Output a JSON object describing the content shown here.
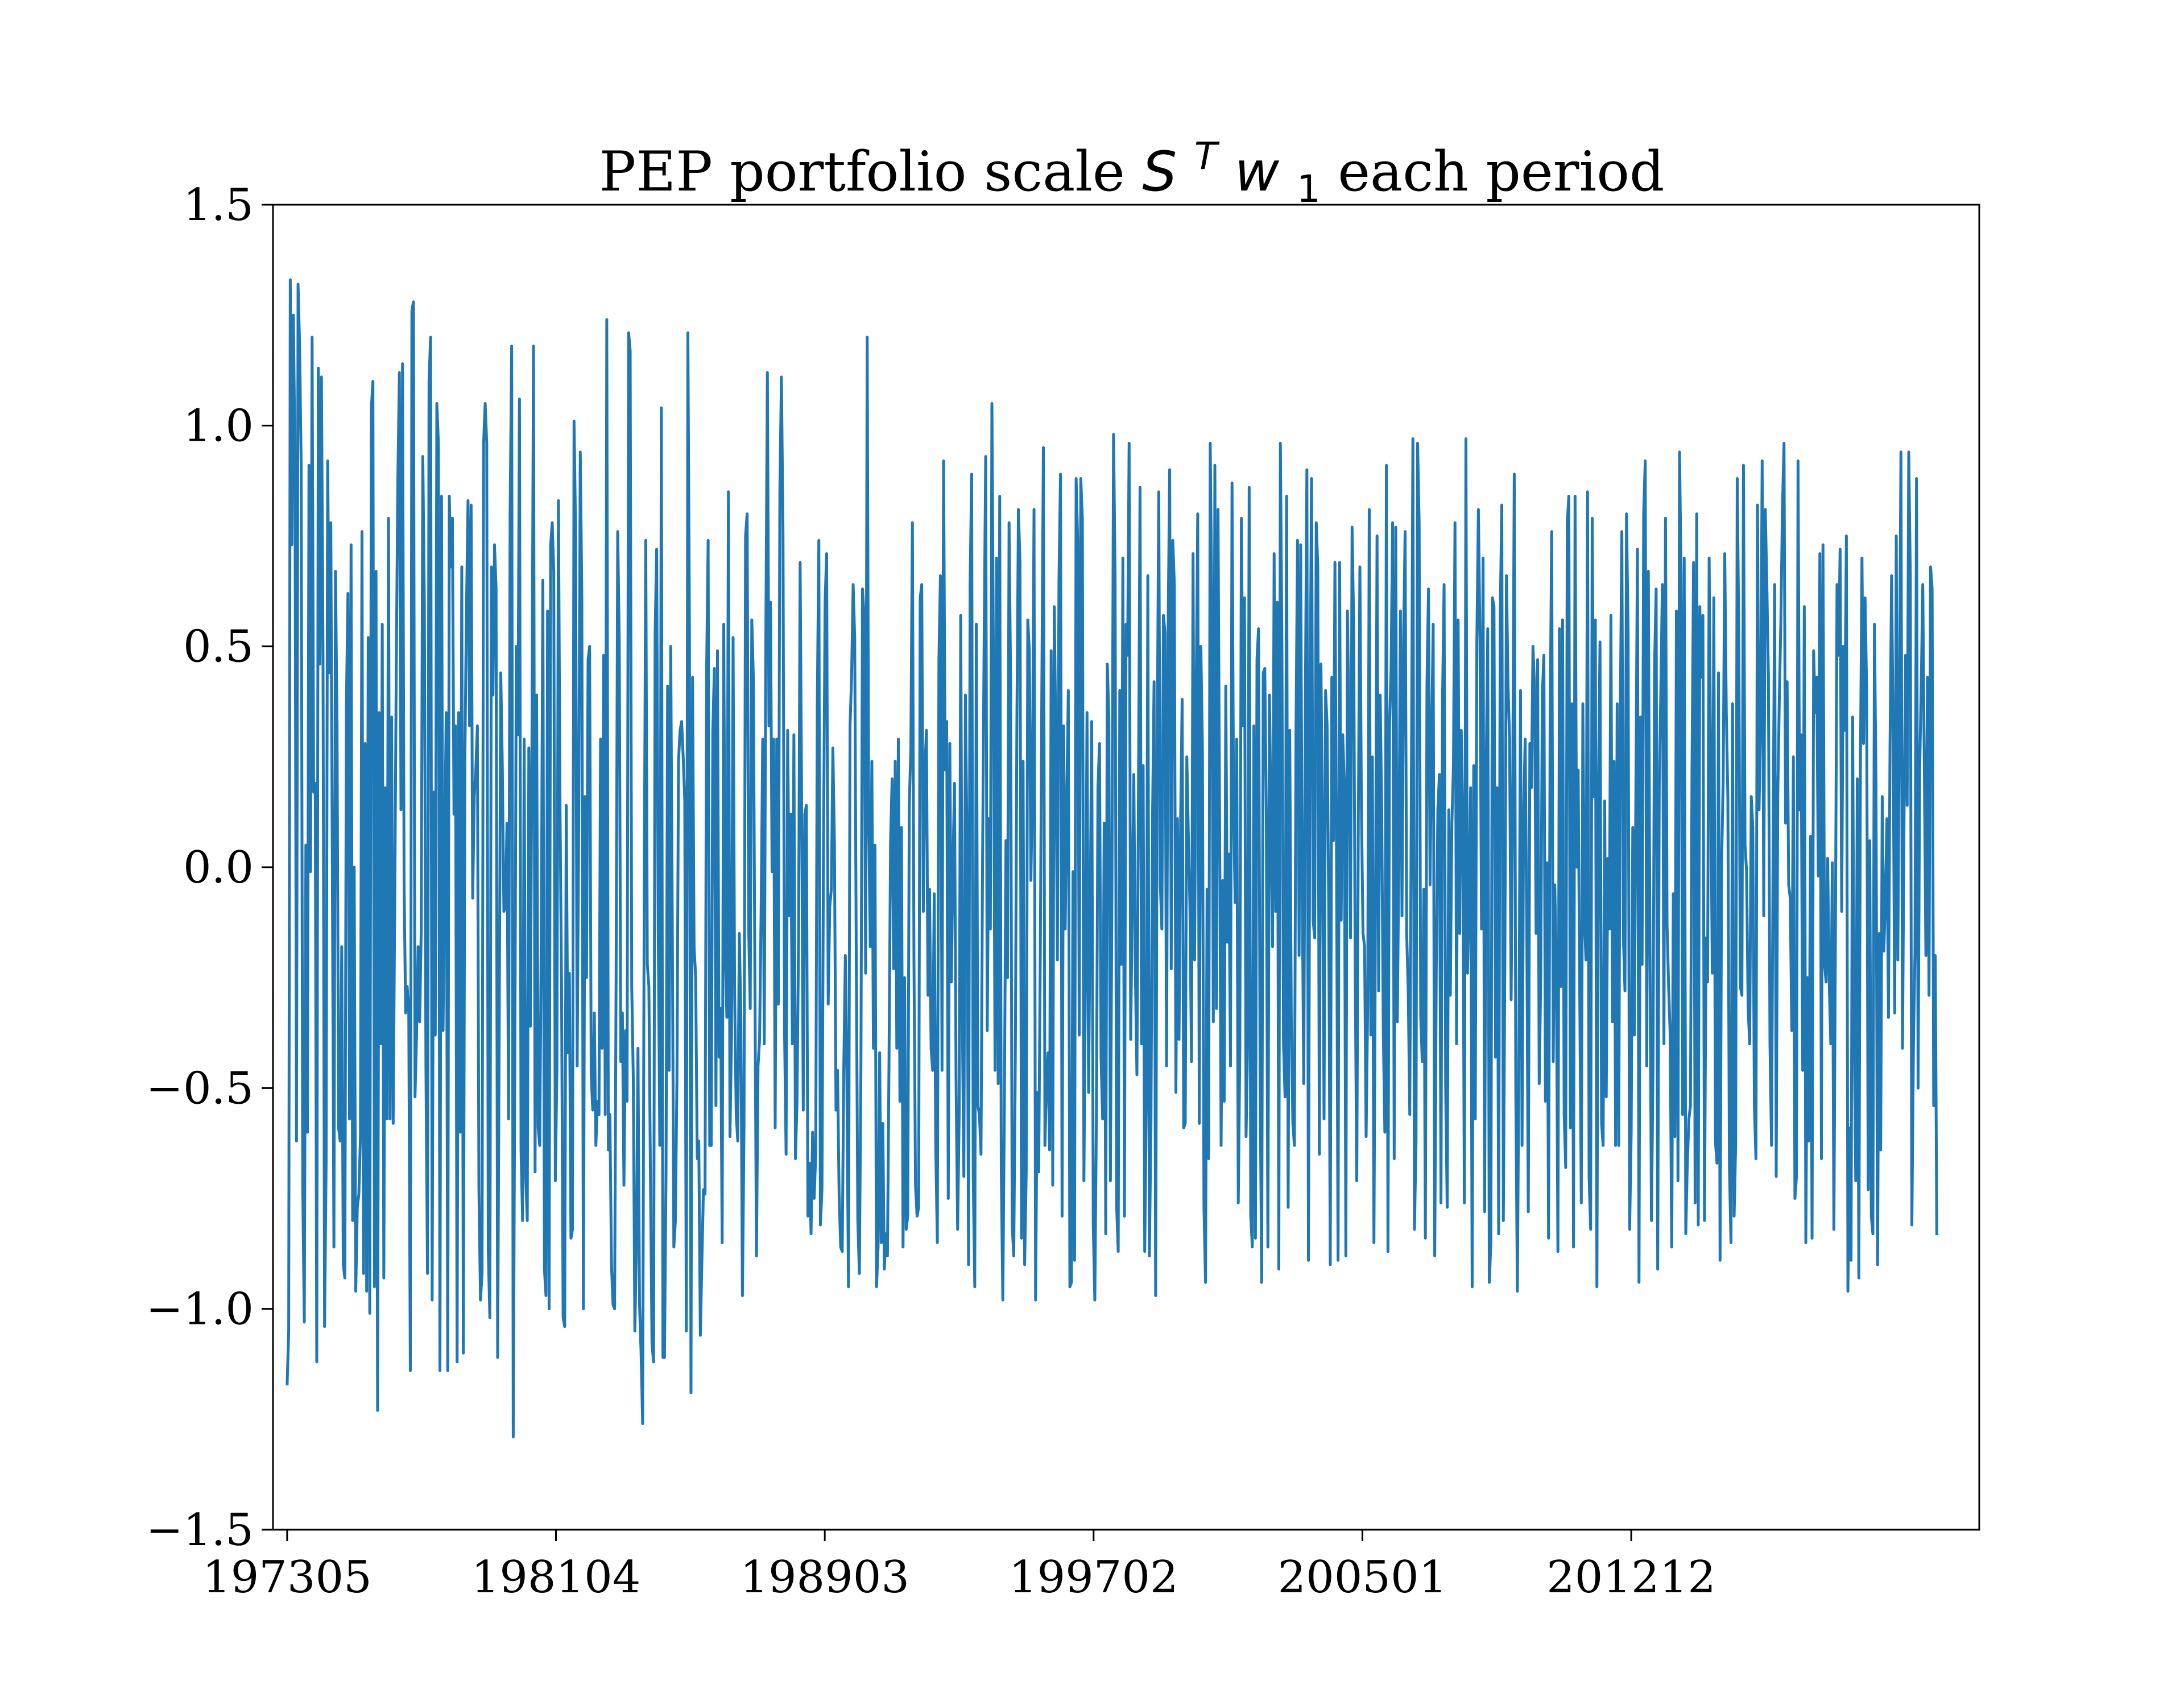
{
  "chart_data": {
    "type": "line",
    "title": {
      "prefix": "PEP portfolio scale ",
      "math_base": "S",
      "math_sup": "T",
      "math_var": "w",
      "math_sub": "1",
      "suffix": " each period"
    },
    "xlabel": "",
    "ylabel": "",
    "xlim": [
      197212,
      202303
    ],
    "ylim": [
      -1.5,
      1.5
    ],
    "x_ticks": [
      "197305",
      "198104",
      "198903",
      "199702",
      "200501",
      "201212"
    ],
    "y_ticks": [
      -1.5,
      -1.0,
      -0.5,
      0.0,
      0.5,
      1.0,
      1.5
    ],
    "y_tick_labels": [
      "−1.5",
      "−1.0",
      "−0.5",
      "0.0",
      "0.5",
      "1.0",
      "1.5"
    ],
    "grid": false,
    "legend": "none",
    "x_start": "197305",
    "x_end": "202112",
    "series": [
      {
        "color": "#1f77b4",
        "values": [
          -1.17,
          -1.05,
          1.33,
          0.73,
          1.25,
          0.93,
          -0.62,
          1.32,
          1.18,
          0.91,
          -0.72,
          -1.03,
          0.05,
          -0.6,
          0.91,
          -0.01,
          1.2,
          0.17,
          0.19,
          -1.12,
          1.13,
          0.46,
          1.11,
          0.48,
          -1.04,
          -0.67,
          0.92,
          0.44,
          0.78,
          -0.02,
          -0.86,
          0.67,
          0.32,
          -0.59,
          -0.62,
          -0.18,
          -0.9,
          -0.93,
          0.37,
          0.62,
          -0.57,
          0.73,
          -0.8,
          0.0,
          -0.96,
          -0.77,
          -0.74,
          -0.61,
          0.76,
          -0.92,
          0.28,
          -0.96,
          0.52,
          -1.01,
          1.04,
          1.1,
          -0.95,
          0.67,
          -1.23,
          0.35,
          -0.4,
          0.55,
          -0.93,
          0.18,
          -0.57,
          0.79,
          -0.57,
          0.34,
          -0.58,
          -0.08,
          0.46,
          0.88,
          1.12,
          0.13,
          1.14,
          -0.04,
          -0.33,
          -0.27,
          -0.33,
          -1.14,
          1.26,
          1.28,
          -0.52,
          -0.38,
          -0.18,
          -0.35,
          -0.14,
          0.93,
          0.6,
          -0.45,
          -0.92,
          1.1,
          1.2,
          -0.98,
          0.17,
          -0.38,
          1.05,
          0.96,
          -1.14,
          0.84,
          -0.37,
          0.02,
          0.35,
          -1.14,
          0.84,
          0.68,
          0.79,
          0.12,
          0.32,
          -1.12,
          0.35,
          -0.6,
          0.68,
          -1.1,
          0.25,
          0.58,
          0.83,
          0.32,
          0.82,
          -0.07,
          0.16,
          0.22,
          0.32,
          -0.73,
          -0.98,
          -0.92,
          0.96,
          1.05,
          0.96,
          -0.87,
          -1.02,
          0.68,
          0.39,
          0.73,
          0.63,
          -1.11,
          -0.37,
          0.44,
          0.23,
          -0.1,
          -0.09,
          0.1,
          -0.57,
          0.8,
          1.18,
          -1.29,
          -0.45,
          0.5,
          0.3,
          1.06,
          -0.64,
          -0.8,
          0.29,
          -0.7,
          -0.8,
          0.27,
          -0.36,
          0.28,
          1.18,
          -0.69,
          0.39,
          -0.59,
          -0.63,
          -0.14,
          0.65,
          -0.91,
          -0.97,
          0.58,
          -1.0,
          0.73,
          0.78,
          0.67,
          -0.71,
          -0.46,
          0.83,
          0.14,
          -0.28,
          -1.02,
          -1.04,
          0.14,
          -0.42,
          -0.24,
          -0.84,
          -0.82,
          1.01,
          0.76,
          -0.45,
          0.1,
          0.94,
          0.61,
          -1.0,
          0.16,
          -0.25,
          0.47,
          0.5,
          -0.47,
          -0.55,
          -0.33,
          -0.63,
          -0.53,
          -0.56,
          0.29,
          -0.41,
          0.48,
          -0.56,
          1.24,
          -0.64,
          -0.56,
          -0.9,
          -0.99,
          -1.0,
          -0.23,
          0.76,
          0.51,
          -0.44,
          -0.33,
          -0.72,
          -0.37,
          -0.53,
          1.21,
          1.17,
          -0.27,
          -0.48,
          -1.05,
          -0.85,
          -0.41,
          -0.99,
          -1.1,
          -1.26,
          -0.07,
          0.74,
          -0.22,
          -0.27,
          -0.7,
          -1.08,
          -1.12,
          0.53,
          0.72,
          -0.14,
          -0.63,
          1.04,
          -1.11,
          -1.11,
          -0.69,
          0.41,
          -0.46,
          0.5,
          -0.12,
          -0.86,
          -0.8,
          -0.48,
          0.24,
          0.31,
          0.33,
          0.25,
          0.15,
          -1.05,
          1.21,
          0.54,
          -1.19,
          0.43,
          -0.18,
          -0.25,
          -0.66,
          -0.62,
          -1.06,
          -0.89,
          -0.73,
          -0.74,
          0.44,
          0.74,
          -0.63,
          -0.63,
          0.31,
          0.45,
          -0.54,
          0.49,
          -0.43,
          -0.32,
          -0.85,
          0.55,
          -0.19,
          -0.34,
          0.85,
          -0.61,
          -0.38,
          0.52,
          -0.29,
          -0.56,
          -0.62,
          -0.15,
          -0.34,
          -0.97,
          -0.59,
          0.75,
          0.8,
          -0.14,
          -0.32,
          0.56,
          0.43,
          -0.26,
          -0.88,
          -0.45,
          -0.39,
          -0.09,
          0.29,
          -0.4,
          0.52,
          1.12,
          0.32,
          0.6,
          -0.01,
          0.29,
          -0.59,
          0.29,
          -0.31,
          0.85,
          1.11,
          0.76,
          -0.37,
          -0.65,
          0.31,
          -0.11,
          0.12,
          -0.4,
          0.3,
          -0.66,
          -0.53,
          -0.16,
          0.69,
          0.13,
          -0.55,
          0.12,
          0.14,
          -0.79,
          -0.67,
          -0.83,
          -0.6,
          -0.75,
          -0.65,
          0.37,
          0.74,
          -0.81,
          -0.73,
          0.05,
          0.6,
          0.71,
          -0.31,
          -0.09,
          -0.05,
          0.27,
          0.05,
          -0.55,
          -0.46,
          -0.74,
          -0.86,
          -0.87,
          -0.45,
          -0.2,
          -0.49,
          -0.95,
          0.32,
          0.43,
          0.64,
          0.52,
          -0.2,
          -0.8,
          -0.92,
          -0.45,
          0.63,
          0.57,
          -0.24,
          1.2,
          0.09,
          -0.18,
          0.24,
          -0.41,
          0.05,
          -0.95,
          -0.86,
          -0.42,
          -0.85,
          -0.58,
          -0.91,
          -0.83,
          -0.88,
          -0.44,
          0.06,
          0.2,
          -0.23,
          0.24,
          -0.41,
          0.29,
          -0.53,
          0.09,
          -0.86,
          -0.25,
          -0.82,
          -0.79,
          0.14,
          0.27,
          0.78,
          -0.21,
          -0.72,
          -0.79,
          -0.77,
          0.61,
          0.64,
          -0.1,
          0.22,
          0.31,
          -0.29,
          -0.05,
          -0.41,
          -0.46,
          -0.06,
          -0.64,
          -0.85,
          0.47,
          0.66,
          -0.46,
          0.92,
          0.22,
          0.33,
          -0.75,
          0.28,
          -0.26,
          0.0,
          0.19,
          -0.48,
          -0.82,
          -0.56,
          0.57,
          -0.33,
          -0.7,
          0.39,
          0.06,
          -0.9,
          0.64,
          0.89,
          -0.7,
          -0.95,
          0.55,
          -0.54,
          -0.56,
          -0.65,
          0.01,
          0.51,
          0.93,
          -0.37,
          0.11,
          -0.14,
          1.05,
          0.45,
          -0.46,
          0.7,
          -0.49,
          0.84,
          -0.69,
          -0.98,
          -0.53,
          0.06,
          -0.25,
          0.78,
          0.42,
          -0.81,
          -0.88,
          -0.44,
          0.32,
          0.81,
          0.69,
          -0.84,
          0.24,
          -0.9,
          -0.69,
          0.56,
          0.49,
          -0.03,
          0.19,
          0.81,
          -0.98,
          -0.51,
          -0.69,
          -0.21,
          0.4,
          0.95,
          -0.63,
          -0.48,
          -0.42,
          -0.64,
          0.49,
          -0.72,
          0.59,
          0.29,
          -0.21,
          0.65,
          0.89,
          -0.79,
          0.32,
          -0.14,
          0.14,
          0.4,
          -0.95,
          -0.94,
          -0.01,
          -0.89,
          0.88,
          0.74,
          -0.38,
          0.88,
          0.79,
          -0.71,
          -0.23,
          0.35,
          -0.51,
          -0.1,
          0.33,
          -0.81,
          -0.98,
          -0.57,
          0.18,
          0.28,
          -0.43,
          -0.57,
          0.1,
          -0.83,
          0.46,
          0.34,
          -0.71,
          -0.03,
          0.98,
          0.66,
          -0.77,
          -0.87,
          0.4,
          -0.22,
          0.7,
          -0.79,
          0.55,
          0.48,
          0.96,
          -0.39,
          -0.08,
          0.21,
          -0.24,
          -0.47,
          0.18,
          0.86,
          -0.4,
          0.23,
          -0.87,
          -0.53,
          0.66,
          -0.88,
          -0.58,
          0.11,
          0.42,
          -0.97,
          0.27,
          0.85,
          -0.04,
          -0.14,
          0.57,
          0.53,
          -0.45,
          0.54,
          0.9,
          -0.23,
          0.74,
          0.64,
          -0.51,
          0.11,
          -0.39,
          0.1,
          0.38,
          -0.59,
          -0.58,
          0.25,
          0.07,
          -0.09,
          -0.44,
          0.71,
          -0.21,
          0.39,
          0.8,
          -0.58,
          0.5,
          0.27,
          -0.77,
          -0.94,
          -0.05,
          -0.66,
          0.96,
          0.61,
          -0.35,
          0.91,
          -0.32,
          0.81,
          0.13,
          -0.63,
          -0.03,
          -0.53,
          0.41,
          -0.17,
          0.03,
          -0.45,
          0.87,
          0.13,
          -0.08,
          0.29,
          -0.76,
          -0.41,
          0.79,
          0.32,
          0.61,
          -0.61,
          -0.4,
          0.86,
          -0.79,
          -0.86,
          0.32,
          -0.84,
          0.47,
          0.54,
          -0.47,
          -0.94,
          0.44,
          0.45,
          0.11,
          -0.86,
          0.39,
          0.1,
          -0.18,
          0.71,
          -0.1,
          0.6,
          -0.91,
          0.96,
          0.5,
          -0.4,
          -0.52,
          0.84,
          -0.77,
          0.31,
          -0.34,
          -0.58,
          -0.63,
          0.3,
          0.74,
          -0.2,
          0.73,
          -0.04,
          -0.49,
          0.37,
          0.9,
          -0.89,
          0.36,
          0.88,
          -0.12,
          -0.16,
          0.78,
          0.68,
          -0.65,
          0.46,
          0.12,
          -0.57,
          0.4,
          0.32,
          -0.09,
          -0.9,
          0.43,
          0.06,
          0.69,
          0.03,
          -0.89,
          0.69,
          -0.12,
          0.3,
          0.19,
          -0.88,
          0.58,
          0.32,
          -0.16,
          0.77,
          0.55,
          -0.24,
          -0.71,
          0.11,
          0.68,
          0.13,
          -0.15,
          -0.18,
          -0.61,
          -0.31,
          0.81,
          -0.38,
          0.25,
          -0.85,
          -0.1,
          0.75,
          -0.28,
          0.39,
          0.13,
          -0.37,
          -0.6,
          0.91,
          -0.87,
          0.32,
          0.45,
          0.78,
          -0.66,
          0.77,
          -0.35,
          0.02,
          0.58,
          -0.11,
          0.51,
          0.76,
          -0.15,
          -0.28,
          -0.56,
          0.18,
          0.97,
          -0.82,
          -0.62,
          0.96,
          0.78,
          -0.34,
          -0.44,
          -0.05,
          -0.84,
          0.41,
          0.63,
          -0.04,
          0.29,
          0.55,
          -0.88,
          -0.23,
          0.13,
          0.21,
          -0.76,
          0.38,
          0.64,
          -0.5,
          -0.77,
          0.13,
          -0.29,
          0.1,
          0.23,
          0.78,
          -0.4,
          0.56,
          -0.15,
          0.31,
          0.1,
          -0.76,
          0.97,
          -0.24,
          -0.08,
          0.18,
          -0.95,
          0.23,
          -0.57,
          0.51,
          0.81,
          0.52,
          -0.14,
          0.7,
          -0.78,
          0.22,
          0.54,
          -0.94,
          -0.85,
          0.61,
          0.59,
          -0.43,
          0.18,
          -0.83,
          0.57,
          0.82,
          -0.8,
          -0.19,
          0.66,
          0.41,
          0.29,
          -0.3,
          0.17,
          0.89,
          -0.51,
          -0.96,
          -0.41,
          0.4,
          -0.63,
          0.12,
          0.29,
          -0.12,
          -0.78,
          0.28,
          0.18,
          0.5,
          0.41,
          -0.15,
          0.47,
          -0.49,
          -0.25,
          0.39,
          0.48,
          -0.53,
          0.01,
          -0.84,
          0.32,
          0.76,
          -0.44,
          -0.04,
          -0.22,
          -0.87,
          0.54,
          -0.27,
          0.56,
          -0.56,
          -0.68,
          0.78,
          0.84,
          -0.59,
          0.37,
          -0.86,
          0.84,
          0.0,
          0.22,
          -0.29,
          -0.76,
          0.37,
          -0.12,
          -0.21,
          0.85,
          -0.7,
          -0.82,
          0.79,
          0.16,
          0.56,
          -0.95,
          0.19,
          0.51,
          -0.58,
          -0.63,
          0.15,
          -0.52,
          0.02,
          -0.14,
          0.57,
          -0.35,
          0.24,
          -0.63,
          0.37,
          -0.63,
          0.35,
          0.76,
          -0.16,
          -0.28,
          0.8,
          0.53,
          -0.82,
          -0.6,
          0.09,
          -0.38,
          0.17,
          0.72,
          -0.94,
          0.34,
          -0.22,
          0.8,
          0.92,
          -0.45,
          0.67,
          -0.16,
          -0.8,
          -0.45,
          0.46,
          0.63,
          -0.91,
          0.19,
          0.4,
          0.64,
          -0.4,
          0.79,
          -0.13,
          -0.27,
          -0.38,
          -0.86,
          -0.06,
          -0.61,
          0.58,
          -0.71,
          0.94,
          0.66,
          -0.56,
          0.7,
          -0.83,
          -0.67,
          -0.57,
          -0.54,
          0.23,
          0.69,
          -0.76,
          0.8,
          -0.81,
          0.59,
          0.43,
          0.57,
          -0.8,
          -0.16,
          -0.26,
          0.7,
          0.21,
          -0.24,
          0.61,
          -0.62,
          -0.67,
          0.44,
          -0.89,
          0.01,
          0.2,
          0.71,
          0.35,
          0.16,
          -0.68,
          -0.85,
          0.37,
          -0.79,
          -0.63,
          0.88,
          0.53,
          -0.27,
          -0.29,
          0.91,
          0.05,
          -0.01,
          -0.32,
          -0.4,
          0.16,
          0.09,
          -0.54,
          -0.66,
          0.82,
          0.13,
          0.33,
          0.92,
          -0.11,
          0.81,
          0.64,
          0.43,
          -0.4,
          -0.63,
          0.03,
          0.64,
          -0.7,
          0.16,
          0.38,
          0.56,
          0.81,
          0.96,
          0.1,
          0.42,
          -0.04,
          -0.07,
          -0.37,
          0.25,
          -0.75,
          -0.7,
          0.92,
          0.13,
          0.3,
          -0.46,
          0.59,
          -0.85,
          -0.25,
          -0.62,
          0.07,
          -0.84,
          0.49,
          0.35,
          0.43,
          -0.02,
          0.71,
          -0.66,
          0.73,
          -0.22,
          -0.26,
          0.02,
          -0.26,
          -0.4,
          0.01,
          -0.82,
          -0.14,
          0.64,
          0.48,
          0.72,
          -0.1,
          0.5,
          0.31,
          0.75,
          -0.96,
          -0.59,
          -0.89,
          0.34,
          -0.37,
          -0.71,
          0.2,
          -0.93,
          0.23,
          0.7,
          0.28,
          0.61,
          0.4,
          -0.73,
          0.06,
          -0.79,
          -0.83,
          0.55,
          0.19,
          -0.9,
          -0.15,
          -0.64,
          0.16,
          -0.19,
          -0.08,
          0.11,
          -0.34,
          0.28,
          0.66,
          0.3,
          -0.33,
          0.75,
          -0.21,
          0.38,
          0.94,
          -0.41,
          0.12,
          0.48,
          0.14,
          0.94,
          0.66,
          -0.81,
          -0.41,
          -0.19,
          0.88,
          -0.5,
          0.22,
          0.41,
          0.64,
          0.22,
          -0.2,
          0.43,
          -0.29,
          0.68,
          0.63,
          -0.54,
          -0.2,
          -0.83
        ]
      }
    ]
  }
}
